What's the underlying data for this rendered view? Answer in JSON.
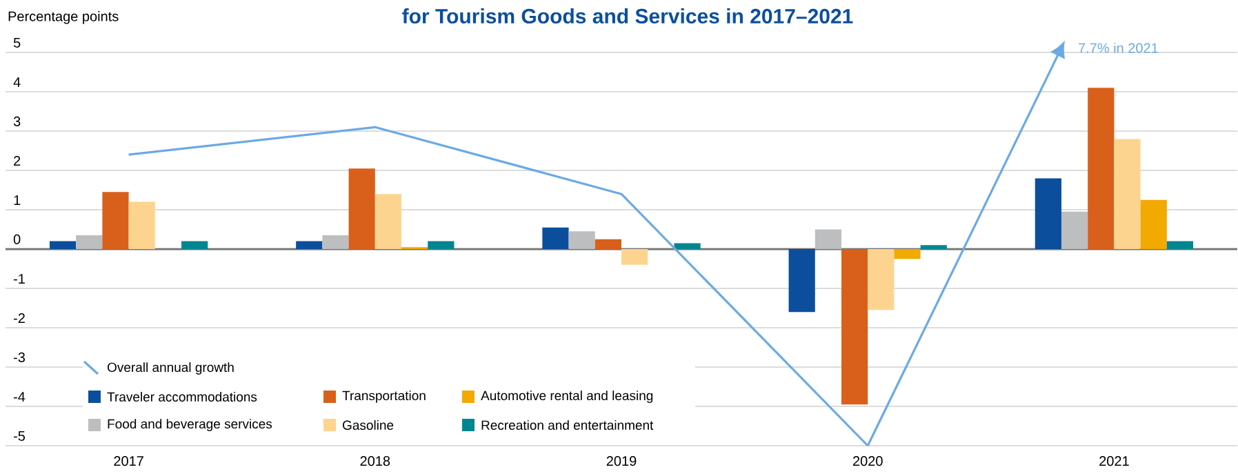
{
  "chart_data": {
    "type": "bar",
    "title": "for Tourism Goods and Services in 2017–2021",
    "ylabel": "Percentage points",
    "categories": [
      "2017",
      "2018",
      "2019",
      "2020",
      "2021"
    ],
    "series": [
      {
        "name": "Traveler accommodations",
        "color": "#0b4f9c",
        "values": [
          0.2,
          0.2,
          0.55,
          -1.6,
          1.8
        ]
      },
      {
        "name": "Food and beverage services",
        "color": "#bcbec0",
        "values": [
          0.35,
          0.35,
          0.45,
          0.5,
          0.95
        ]
      },
      {
        "name": "Transportation",
        "color": "#d9601a",
        "values": [
          1.45,
          2.05,
          0.25,
          -3.95,
          4.1
        ]
      },
      {
        "name": "Gasoline",
        "color": "#fdd48f",
        "values": [
          1.2,
          1.4,
          -0.4,
          -1.55,
          2.8
        ]
      },
      {
        "name": "Automotive rental and leasing",
        "color": "#f2a900",
        "values": [
          0,
          0.05,
          0,
          -0.25,
          1.25
        ]
      },
      {
        "name": "Recreation and entertainment",
        "color": "#00868f",
        "values": [
          0.2,
          0.2,
          0.15,
          0.1,
          0.2
        ]
      },
      {
        "name": "Overall annual growth",
        "type": "line",
        "color": "#6aaae4",
        "values": [
          2.4,
          3.1,
          1.4,
          -5.0,
          null
        ]
      }
    ],
    "annotations": [
      "7.7% in 2021"
    ],
    "ylim": [
      -5,
      5
    ],
    "yticks": [
      -5,
      -4,
      -3,
      -2,
      -1,
      0,
      1,
      2,
      3,
      4,
      5
    ],
    "grid": "y",
    "legend": "bottom left",
    "marker": "none",
    "line_style": "solid"
  }
}
